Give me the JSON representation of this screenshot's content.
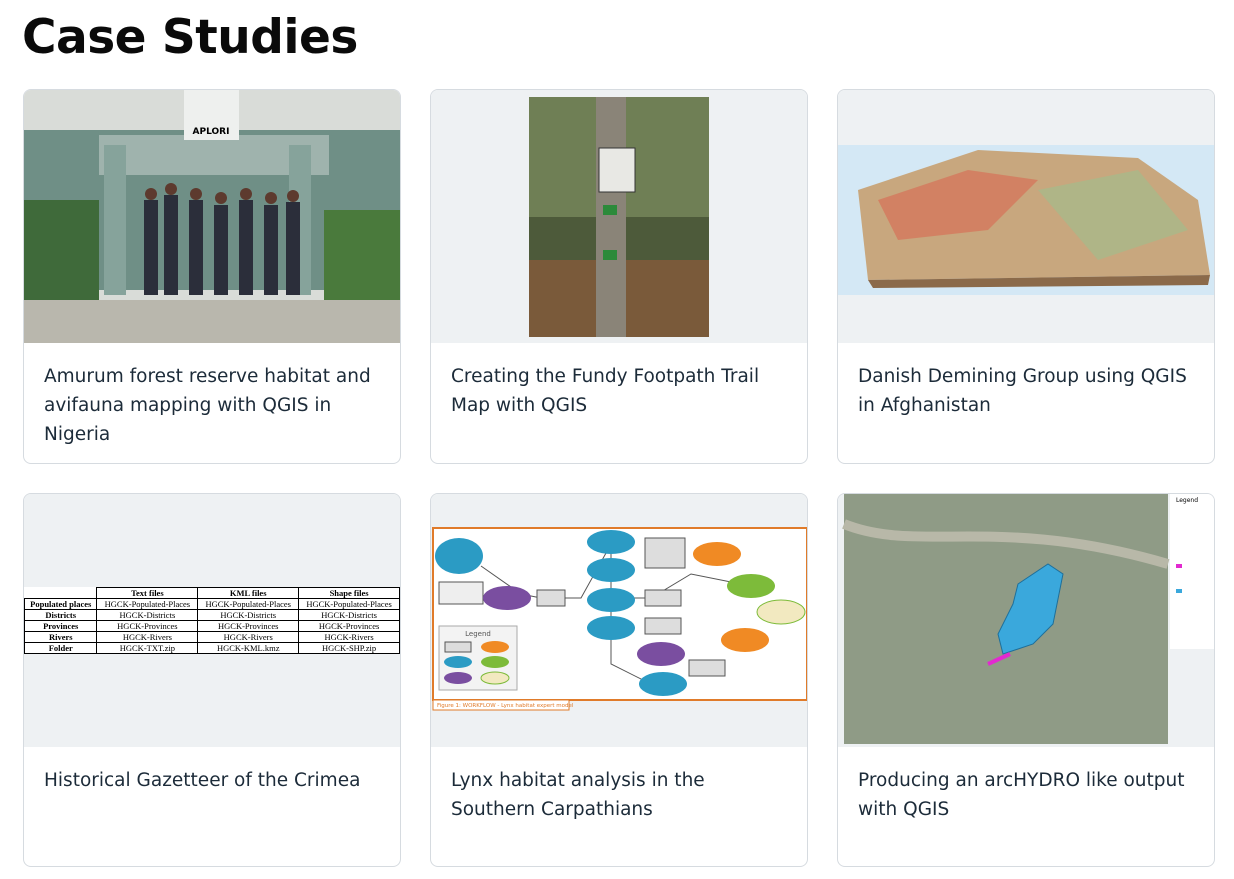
{
  "page": {
    "title": "Case Studies",
    "cards": [
      {
        "title": "Amurum forest reserve habitat and avifauna mapping with QGIS in Nigeria",
        "sign": "APLORI"
      },
      {
        "title": "Creating the Fundy Footpath Trail Map with QGIS"
      },
      {
        "title": "Danish Demining Group using QGIS in Afghanistan"
      },
      {
        "title": "Historical Gazetteer of the Crimea"
      },
      {
        "title": "Lynx habitat analysis in the Southern Carpathians",
        "caption": "Figure 1: WORKFLOW - Lynx habitat expert model",
        "legend": "Legend"
      },
      {
        "title": "Producing an arcHYDRO like output with QGIS",
        "legend": "Legend"
      }
    ],
    "table": {
      "header": [
        "",
        "Text files",
        "KML files",
        "Shape files"
      ],
      "rows": [
        [
          "Populated places",
          "HGCK-Populated-Places",
          "HGCK-Populated-Places",
          "HGCK-Populated-Places"
        ],
        [
          "Districts",
          "HGCK-Districts",
          "HGCK-Districts",
          "HGCK-Districts"
        ],
        [
          "Provinces",
          "HGCK-Provinces",
          "HGCK-Provinces",
          "HGCK-Provinces"
        ],
        [
          "Rivers",
          "HGCK-Rivers",
          "HGCK-Rivers",
          "HGCK-Rivers"
        ],
        [
          "Folder",
          "HGCK-TXT.zip",
          "HGCK-KML.kmz",
          "HGCK-SHP.zip"
        ]
      ]
    }
  }
}
